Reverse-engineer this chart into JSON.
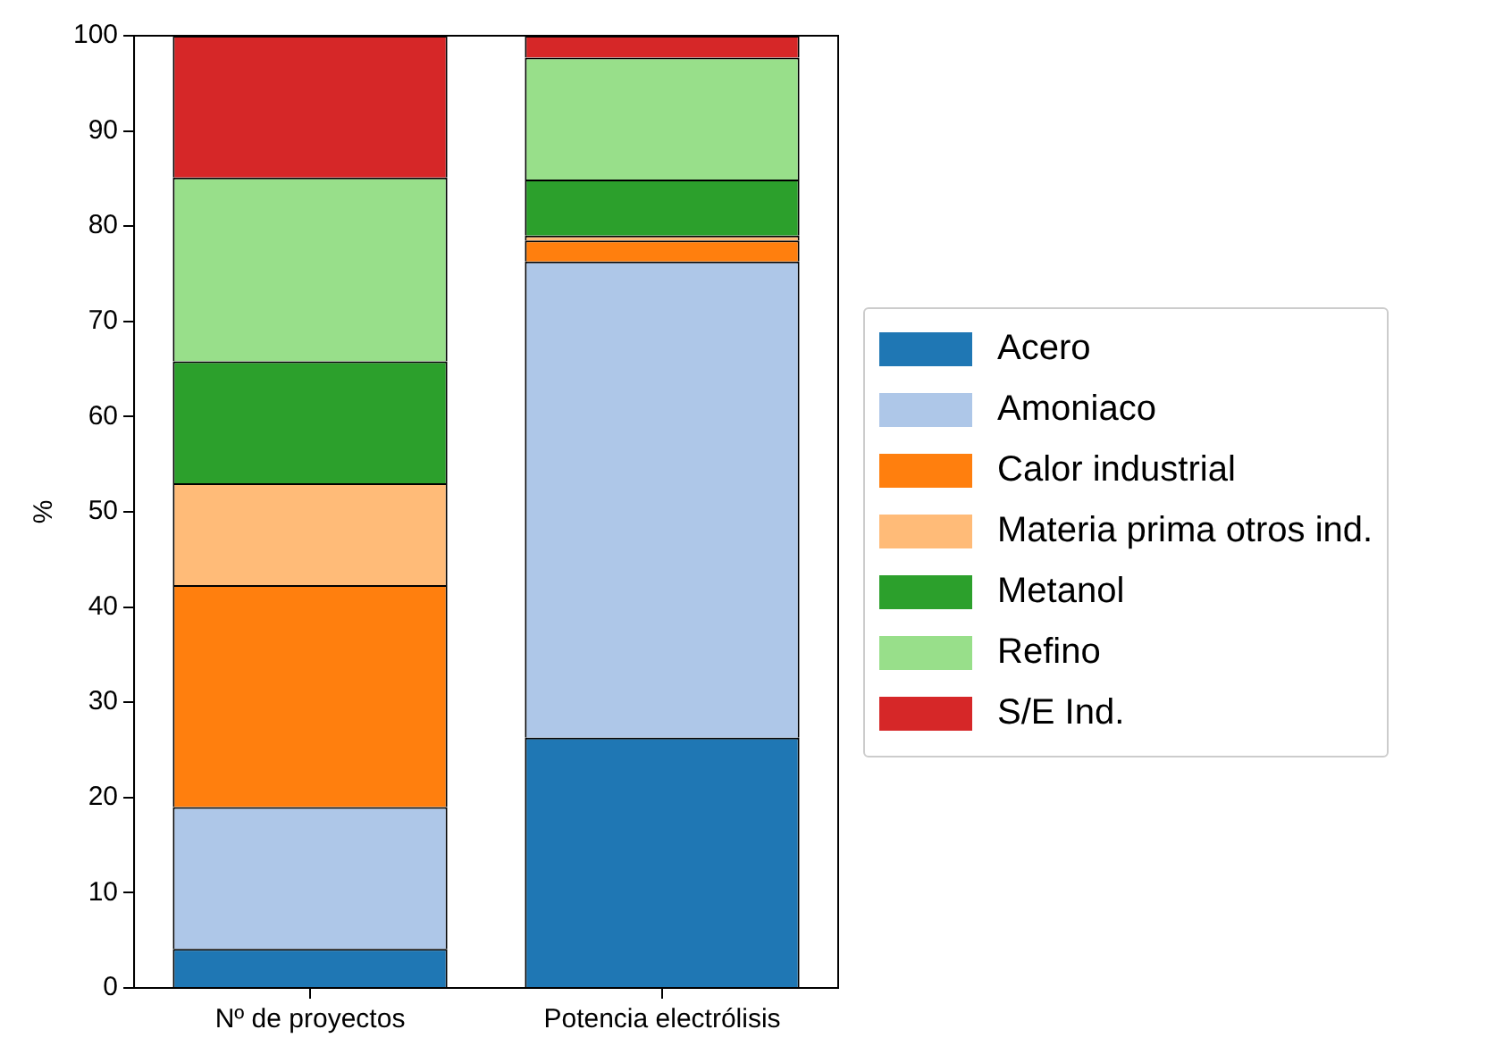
{
  "chart_data": {
    "type": "bar",
    "stacked": true,
    "ylabel": "%",
    "categories": [
      "Nº de proyectos",
      "Potencia electrólisis"
    ],
    "ylim": [
      0,
      100
    ],
    "yticks": [
      0,
      10,
      20,
      30,
      40,
      50,
      60,
      70,
      80,
      90,
      100
    ],
    "grid": false,
    "legend": "right",
    "series": [
      {
        "name": "Acero",
        "color": "#1f77b4",
        "values": [
          4.1,
          26.3
        ]
      },
      {
        "name": "Amoniaco",
        "color": "#aec7e8",
        "values": [
          14.9,
          50.0
        ]
      },
      {
        "name": "Calor industrial",
        "color": "#ff7f0e",
        "values": [
          23.3,
          2.2
        ]
      },
      {
        "name": "Materia prima otros ind.",
        "color": "#ffbb78",
        "values": [
          10.7,
          0.5
        ]
      },
      {
        "name": "Metanol",
        "color": "#2ca02c",
        "values": [
          12.8,
          5.9
        ]
      },
      {
        "name": "Refino",
        "color": "#98df8a",
        "values": [
          19.3,
          12.8
        ]
      },
      {
        "name": "S/E Ind.",
        "color": "#d62728",
        "values": [
          14.9,
          2.3
        ]
      }
    ]
  }
}
